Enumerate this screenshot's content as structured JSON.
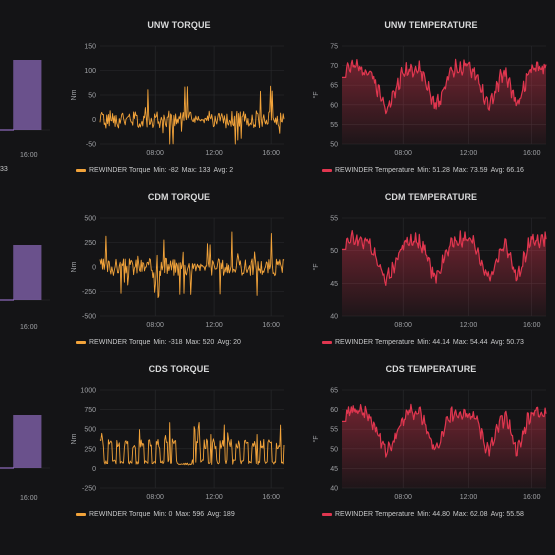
{
  "colors": {
    "background": "#141416",
    "grid": "#2a2b2e",
    "torque": "#f2a33a",
    "temperature": "#e0364f",
    "purple": "#a77de0"
  },
  "x_ticks": [
    "08:00",
    "12:00",
    "16:00"
  ],
  "left_partial": {
    "x_tick": "16:00",
    "legend_fragments": [
      "33",
      "",
      ""
    ]
  },
  "panels": [
    {
      "id": "unw-torque",
      "title": "UNW TORQUE",
      "unit": "Nm",
      "color": "#f2a33a",
      "y_ticks": [
        "150",
        "100",
        "50",
        "0",
        "-50"
      ],
      "y_range": [
        -50,
        150
      ],
      "legend": {
        "series": "REWINDER Torque",
        "min": "Min: -82",
        "max": "Max: 133",
        "avg": "Avg: 2"
      }
    },
    {
      "id": "unw-temperature",
      "title": "UNW TEMPERATURE",
      "unit": "°F",
      "color": "#e0364f",
      "y_ticks": [
        "75",
        "70",
        "65",
        "60",
        "55",
        "50"
      ],
      "y_range": [
        50,
        75
      ],
      "legend": {
        "series": "REWINDER Temperature",
        "min": "Min: 51.28",
        "max": "Max: 73.59",
        "avg": "Avg: 66.16"
      }
    },
    {
      "id": "cdm-torque",
      "title": "CDM TORQUE",
      "unit": "Nm",
      "color": "#f2a33a",
      "y_ticks": [
        "500",
        "250",
        "0",
        "-250",
        "-500"
      ],
      "y_range": [
        -500,
        500
      ],
      "legend": {
        "series": "REWINDER Torque",
        "min": "Min: -318",
        "max": "Max: 520",
        "avg": "Avg: 20"
      }
    },
    {
      "id": "cdm-temperature",
      "title": "CDM TEMPERATURE",
      "unit": "°F",
      "color": "#e0364f",
      "y_ticks": [
        "55",
        "50",
        "45",
        "40"
      ],
      "y_range": [
        40,
        55
      ],
      "legend": {
        "series": "REWINDER Temperature",
        "min": "Min: 44.14",
        "max": "Max: 54.44",
        "avg": "Avg: 50.73"
      }
    },
    {
      "id": "cds-torque",
      "title": "CDS TORQUE",
      "unit": "Nm",
      "color": "#f2a33a",
      "y_ticks": [
        "1000",
        "750",
        "500",
        "250",
        "0",
        "-250"
      ],
      "y_range": [
        -250,
        1000
      ],
      "legend": {
        "series": "REWINDER Torque",
        "min": "Min: 0",
        "max": "Max: 596",
        "avg": "Avg: 189"
      }
    },
    {
      "id": "cds-temperature",
      "title": "CDS TEMPERATURE",
      "unit": "°F",
      "color": "#e0364f",
      "y_ticks": [
        "65",
        "60",
        "55",
        "50",
        "45",
        "40"
      ],
      "y_range": [
        40,
        65
      ],
      "legend": {
        "series": "REWINDER Temperature",
        "min": "Min: 44.80",
        "max": "Max: 62.08",
        "avg": "Avg: 55.58"
      }
    }
  ]
}
